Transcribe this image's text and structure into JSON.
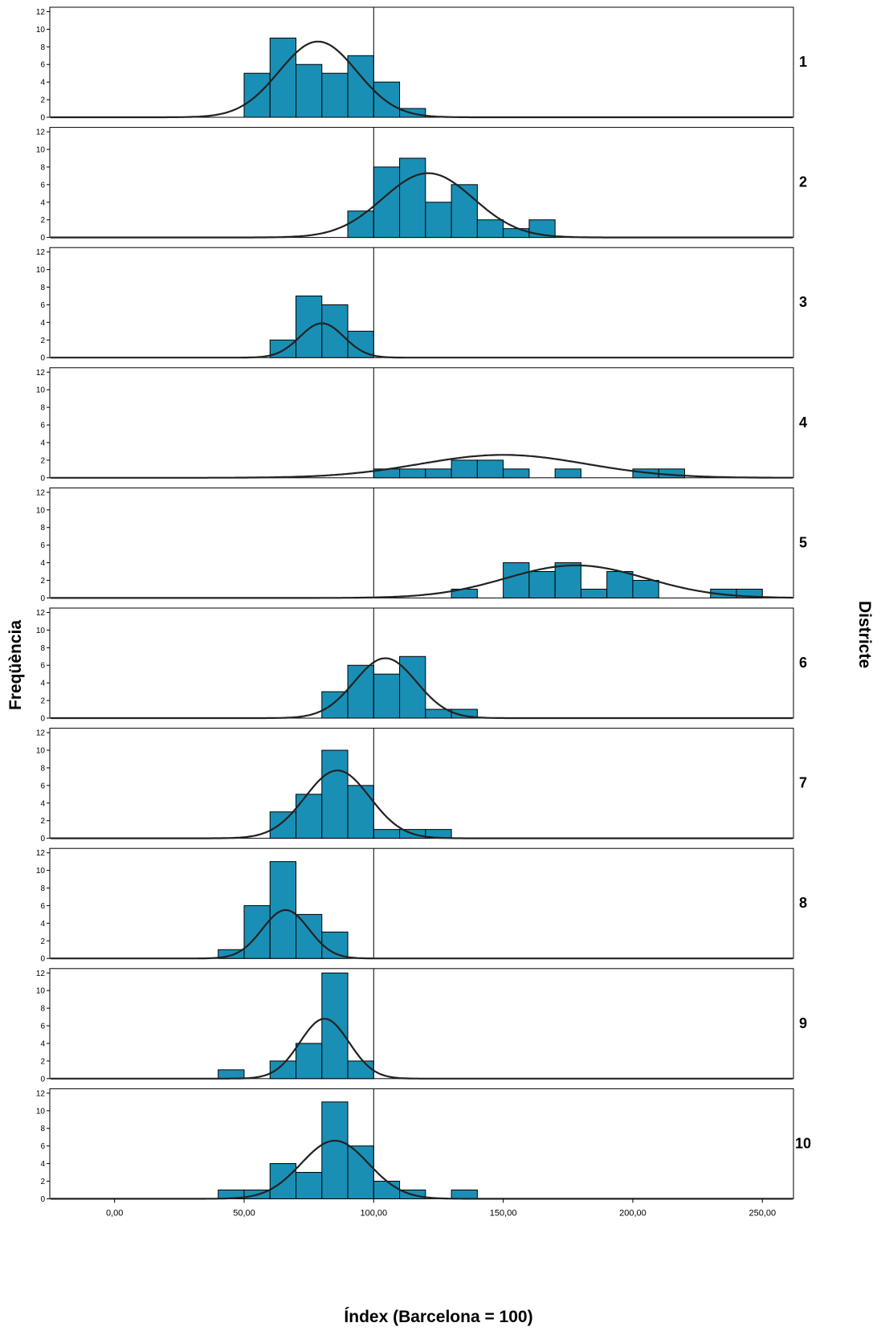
{
  "chart_data": {
    "type": "histogram-panels",
    "xlabel": "Índex (Barcelona = 100)",
    "ylabel": "Freqüència",
    "facet_label": "Districte",
    "xlim": [
      -25,
      262
    ],
    "ylim": [
      0,
      12.5
    ],
    "x_ticks": [
      {
        "value": 0,
        "label": "0,00"
      },
      {
        "value": 50,
        "label": "50,00"
      },
      {
        "value": 100,
        "label": "100,00"
      },
      {
        "value": 150,
        "label": "150,00"
      },
      {
        "value": 200,
        "label": "200,00"
      },
      {
        "value": 250,
        "label": "250,00"
      }
    ],
    "y_ticks": [
      {
        "value": 0,
        "label": "0"
      },
      {
        "value": 2,
        "label": "2"
      },
      {
        "value": 4,
        "label": "4"
      },
      {
        "value": 6,
        "label": "6"
      },
      {
        "value": 8,
        "label": "8"
      },
      {
        "value": 10,
        "label": "10"
      },
      {
        "value": 12,
        "label": "12"
      }
    ],
    "reference_line_x": 100,
    "bin_width": 10,
    "bar_color": "#1a8fb5",
    "curve_color": "#222222",
    "panels": [
      {
        "label": "1",
        "bins": [
          [
            50,
            5
          ],
          [
            60,
            9
          ],
          [
            70,
            6
          ],
          [
            80,
            5
          ],
          [
            90,
            7
          ],
          [
            100,
            4
          ],
          [
            110,
            1
          ]
        ],
        "curve": {
          "mean": 78.5,
          "peak": 8.6,
          "sd": 15
        }
      },
      {
        "label": "2",
        "bins": [
          [
            90,
            3
          ],
          [
            100,
            8
          ],
          [
            110,
            9
          ],
          [
            120,
            4
          ],
          [
            130,
            6
          ],
          [
            140,
            2
          ],
          [
            150,
            1
          ],
          [
            160,
            2
          ]
        ],
        "curve": {
          "mean": 121,
          "peak": 7.3,
          "sd": 17.5
        }
      },
      {
        "label": "3",
        "bins": [
          [
            60,
            2
          ],
          [
            70,
            7
          ],
          [
            80,
            6
          ],
          [
            90,
            3
          ]
        ],
        "curve": {
          "mean": 80,
          "peak": 3.9,
          "sd": 8.5
        }
      },
      {
        "label": "4",
        "bins": [
          [
            100,
            1
          ],
          [
            110,
            1
          ],
          [
            120,
            1
          ],
          [
            130,
            2
          ],
          [
            140,
            2
          ],
          [
            150,
            1
          ],
          [
            170,
            1
          ],
          [
            200,
            1
          ],
          [
            210,
            1
          ]
        ],
        "curve": {
          "mean": 150,
          "peak": 2.6,
          "sd": 32
        }
      },
      {
        "label": "5",
        "bins": [
          [
            130,
            1
          ],
          [
            150,
            4
          ],
          [
            160,
            3
          ],
          [
            170,
            4
          ],
          [
            180,
            1
          ],
          [
            190,
            3
          ],
          [
            200,
            2
          ],
          [
            230,
            1
          ],
          [
            240,
            1
          ]
        ],
        "curve": {
          "mean": 178,
          "peak": 3.7,
          "sd": 27
        }
      },
      {
        "label": "6",
        "bins": [
          [
            80,
            3
          ],
          [
            90,
            6
          ],
          [
            100,
            5
          ],
          [
            110,
            7
          ],
          [
            120,
            1
          ],
          [
            130,
            1
          ]
        ],
        "curve": {
          "mean": 104.5,
          "peak": 6.8,
          "sd": 12
        }
      },
      {
        "label": "7",
        "bins": [
          [
            60,
            3
          ],
          [
            70,
            5
          ],
          [
            80,
            10
          ],
          [
            90,
            6
          ],
          [
            100,
            1
          ],
          [
            110,
            1
          ],
          [
            120,
            1
          ]
        ],
        "curve": {
          "mean": 86,
          "peak": 7.7,
          "sd": 12.5
        }
      },
      {
        "label": "8",
        "bins": [
          [
            40,
            1
          ],
          [
            50,
            6
          ],
          [
            60,
            11
          ],
          [
            70,
            5
          ],
          [
            80,
            3
          ]
        ],
        "curve": {
          "mean": 66,
          "peak": 5.5,
          "sd": 9
        }
      },
      {
        "label": "9",
        "bins": [
          [
            40,
            1
          ],
          [
            60,
            2
          ],
          [
            70,
            4
          ],
          [
            80,
            12
          ],
          [
            90,
            2
          ]
        ],
        "curve": {
          "mean": 81,
          "peak": 6.8,
          "sd": 9.5
        }
      },
      {
        "label": "10",
        "bins": [
          [
            40,
            1
          ],
          [
            50,
            1
          ],
          [
            60,
            4
          ],
          [
            70,
            3
          ],
          [
            80,
            11
          ],
          [
            90,
            6
          ],
          [
            100,
            2
          ],
          [
            110,
            1
          ],
          [
            130,
            1
          ]
        ],
        "curve": {
          "mean": 85,
          "peak": 6.6,
          "sd": 13
        }
      }
    ]
  }
}
